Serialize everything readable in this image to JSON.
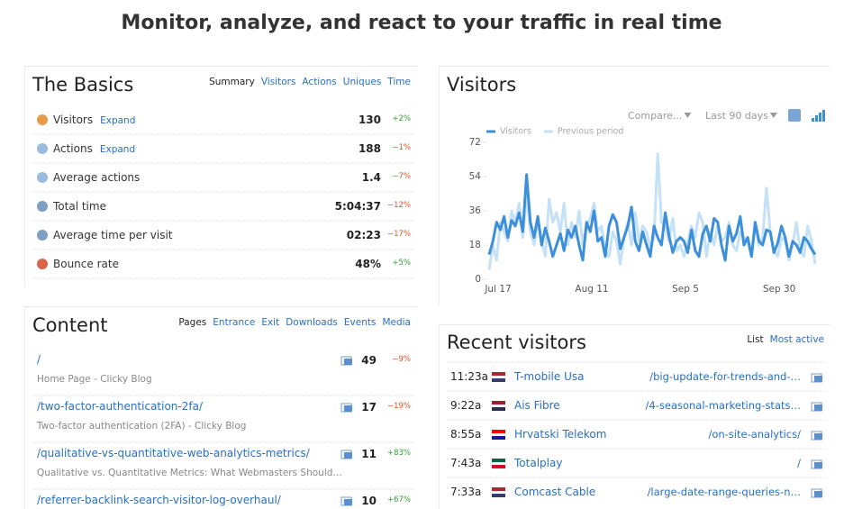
{
  "header": {
    "title": "Monitor, analyze, and react to your traffic in real time"
  },
  "basics": {
    "title": "The Basics",
    "tabs": [
      "Summary",
      "Visitors",
      "Actions",
      "Uniques",
      "Time"
    ],
    "rows": [
      {
        "label": "Visitors",
        "action": "Expand",
        "value": "130",
        "change": "+2%"
      },
      {
        "label": "Actions",
        "action": "Expand",
        "value": "188",
        "change": "−1%"
      },
      {
        "label": "Average actions",
        "value": "1.4",
        "change": "−7%"
      },
      {
        "label": "Total time",
        "value": "5:04:37",
        "change": "−12%"
      },
      {
        "label": "Average time per visit",
        "value": "02:23",
        "change": "−17%"
      },
      {
        "label": "Bounce rate",
        "value": "48%",
        "change": "+5%"
      }
    ]
  },
  "content": {
    "title": "Content",
    "tabs": [
      "Pages",
      "Entrance",
      "Exit",
      "Downloads",
      "Events",
      "Media"
    ],
    "rows": [
      {
        "path": "/",
        "title": "Home Page - Clicky Blog",
        "value": "49",
        "change": "−9%"
      },
      {
        "path": "/two-factor-authentication-2fa/",
        "title": "Two-factor authentication (2FA) - Clicky Blog",
        "value": "17",
        "change": "−19%"
      },
      {
        "path": "/qualitative-vs-quantitative-web-analytics-metrics/",
        "title": "Qualitative vs. Quantitative Metrics: What Webmasters Should…",
        "value": "11",
        "change": "+83%"
      },
      {
        "path": "/referrer-backlink-search-visitor-log-overhaul/",
        "value": "10",
        "change": "+67%"
      }
    ]
  },
  "chart_data": {
    "type": "line",
    "title": "Visitors",
    "compare_label": "Compare...",
    "range_label": "Last 90 days",
    "categories": [
      "Jul 17",
      null,
      null,
      null,
      null,
      null,
      null,
      null,
      null,
      null,
      null,
      null,
      null,
      null,
      null,
      null,
      null,
      null,
      null,
      null,
      null,
      null,
      null,
      null,
      null,
      "Aug 11",
      null,
      null,
      null,
      null,
      null,
      null,
      null,
      null,
      null,
      null,
      null,
      null,
      null,
      null,
      null,
      null,
      null,
      null,
      null,
      null,
      null,
      null,
      null,
      null,
      "Sep 5",
      null,
      null,
      null,
      null,
      null,
      null,
      null,
      null,
      null,
      null,
      null,
      null,
      null,
      null,
      null,
      null,
      null,
      null,
      null,
      null,
      null,
      null,
      null,
      null,
      "Sep 30",
      null,
      null,
      null,
      null,
      null,
      null,
      null,
      null,
      null,
      null,
      null,
      null
    ],
    "series": [
      {
        "name": "Visitors",
        "color": "#3d8fd9",
        "values": [
          13,
          20,
          30,
          26,
          33,
          22,
          31,
          28,
          35,
          25,
          55,
          30,
          22,
          33,
          18,
          27,
          20,
          12,
          18,
          24,
          15,
          26,
          22,
          28,
          18,
          10,
          30,
          25,
          36,
          20,
          22,
          12,
          28,
          34,
          30,
          16,
          22,
          28,
          38,
          20,
          15,
          25,
          18,
          12,
          28,
          22,
          18,
          35,
          23,
          14,
          20,
          22,
          20,
          14,
          26,
          15,
          12,
          24,
          28,
          20,
          32,
          30,
          18,
          10,
          28,
          20,
          24,
          33,
          18,
          22,
          12,
          30,
          20,
          18,
          26,
          25,
          14,
          19,
          28,
          22,
          12,
          20,
          18,
          14,
          22,
          20,
          16,
          13
        ]
      },
      {
        "name": "Previous period",
        "color": "#c5e1f7",
        "values": [
          5,
          18,
          10,
          30,
          25,
          20,
          36,
          30,
          40,
          22,
          45,
          25,
          18,
          30,
          20,
          12,
          42,
          30,
          35,
          25,
          40,
          18,
          30,
          22,
          36,
          18,
          28,
          32,
          40,
          25,
          28,
          15,
          12,
          25,
          20,
          8,
          22,
          30,
          18,
          35,
          20,
          28,
          25,
          16,
          22,
          66,
          30,
          28,
          20,
          32,
          15,
          18,
          12,
          20,
          28,
          22,
          35,
          30,
          12,
          25,
          18,
          28,
          20,
          22,
          30,
          18,
          15,
          25,
          22,
          20,
          12,
          28,
          18,
          22,
          48,
          25,
          15,
          12,
          22,
          20,
          10,
          18,
          30,
          15,
          12,
          28,
          20,
          8
        ]
      }
    ],
    "ylim": [
      0,
      72
    ],
    "yticks": [
      0,
      18,
      36,
      54,
      72
    ],
    "grid": false
  },
  "recent": {
    "title": "Recent visitors",
    "tabs": [
      "List",
      "Most active"
    ],
    "rows": [
      {
        "time": "11:23a",
        "name": "T-mobile Usa",
        "path": "/big-update-for-trends-and-…"
      },
      {
        "time": "9:22a",
        "name": "Ais Fibre",
        "path": "/4-seasonal-marketing-stats…"
      },
      {
        "time": "8:55a",
        "name": "Hrvatski Telekom",
        "path": "/on-site-analytics/"
      },
      {
        "time": "7:43a",
        "name": "Totalplay",
        "path": "/"
      },
      {
        "time": "7:33a",
        "name": "Comcast Cable",
        "path": "/large-date-range-queries-n…"
      }
    ]
  }
}
